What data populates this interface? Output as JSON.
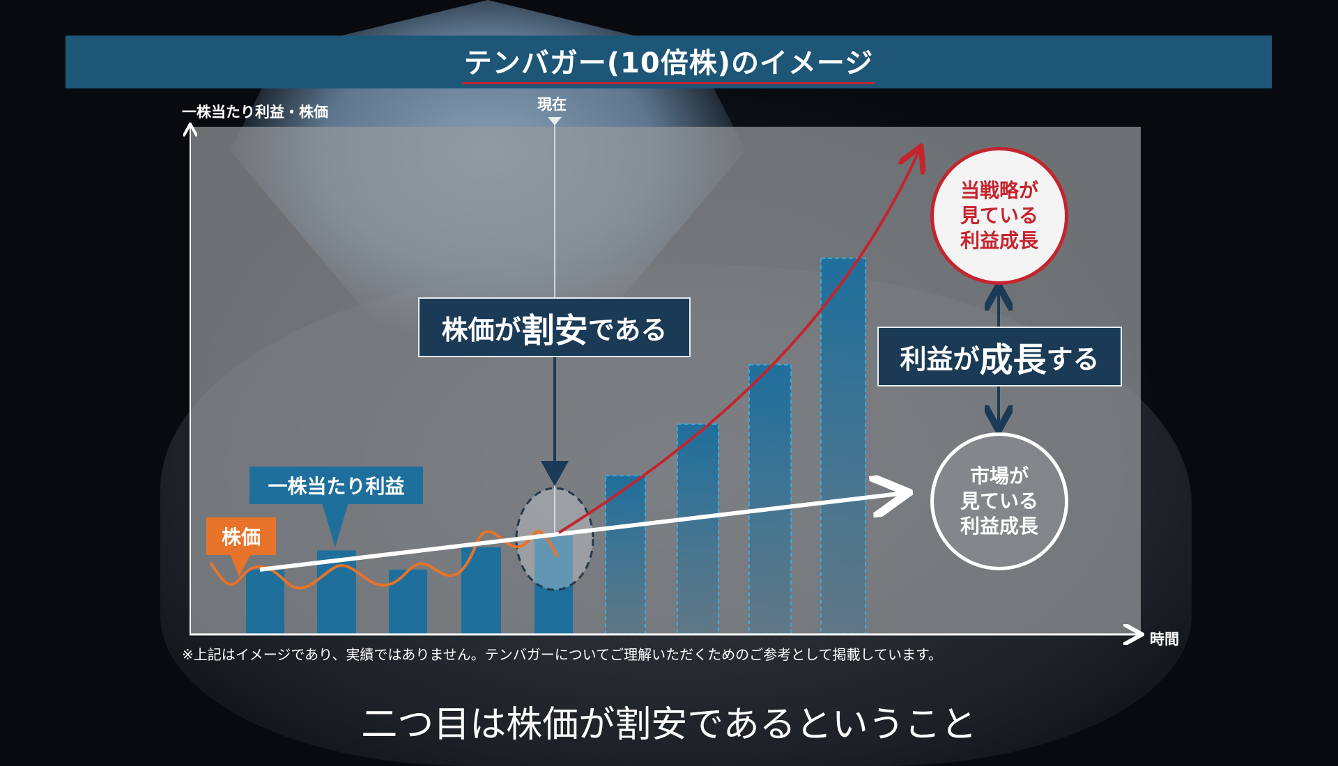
{
  "title": "テンバガー(10倍株)のイメージ",
  "y_axis_label": "一株当たり利益・株価",
  "x_axis_label": "時間",
  "now_label": "現在",
  "callouts": {
    "eps": "一株当たり利益",
    "price": "株価",
    "undervalued": {
      "a": "株価が",
      "b": "割安",
      "c": "である"
    },
    "growth": {
      "a": "利益が",
      "b": "成長",
      "c": "する"
    }
  },
  "circles": {
    "strategy": [
      "当戦略が",
      "見ている",
      "利益成長"
    ],
    "market": [
      "市場が",
      "見ている",
      "利益成長"
    ]
  },
  "footnote": "※上記はイメージであり、実績ではありません。テンバガーについてご理解いただくためのご参考として掲載しています。",
  "subtitle": "二つ目は株価が割安であるということ",
  "colors": {
    "bar": "#1f6f9c",
    "title_bar": "#1d5677",
    "accent_red": "#c4242e",
    "price_line": "#e8732a",
    "box": "#1b3a55"
  },
  "chart_data": {
    "type": "bar",
    "categories": [
      "1",
      "2",
      "3",
      "4",
      "5",
      "6",
      "7",
      "8",
      "9"
    ],
    "values": [
      1.0,
      1.3,
      1.0,
      1.35,
      1.53,
      2.47,
      3.27,
      4.2,
      5.86
    ],
    "projected": [
      false,
      false,
      false,
      false,
      false,
      true,
      true,
      true,
      true
    ],
    "xlabel": "時間",
    "ylabel": "一株当たり利益・株価"
  }
}
